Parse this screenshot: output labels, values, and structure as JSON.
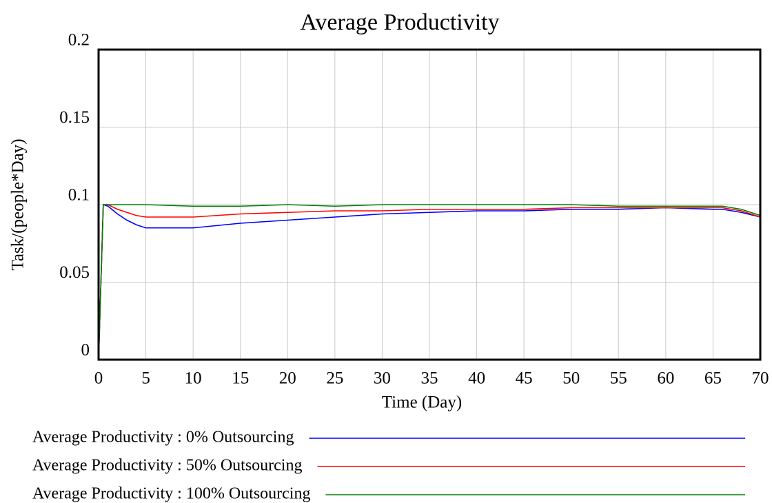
{
  "chart_data": {
    "type": "line",
    "title": "Average Productivity",
    "x_label": "Time (Day)",
    "y_label": "Task/(people*Day)",
    "x": [
      0,
      0.5,
      1,
      2,
      3,
      4,
      5,
      10,
      15,
      20,
      25,
      30,
      35,
      40,
      45,
      50,
      55,
      60,
      65,
      66,
      68,
      70
    ],
    "series": [
      {
        "name": "Average Productivity : 0% Outsourcing",
        "color": "#0000ff",
        "values": [
          0,
          0.1,
          0.099,
          0.094,
          0.09,
          0.087,
          0.085,
          0.085,
          0.088,
          0.09,
          0.092,
          0.094,
          0.095,
          0.096,
          0.096,
          0.097,
          0.097,
          0.098,
          0.097,
          0.097,
          0.095,
          0.092
        ]
      },
      {
        "name": "Average Productivity : 50% Outsourcing",
        "color": "#ff0000",
        "values": [
          0,
          0.1,
          0.1,
          0.097,
          0.095,
          0.093,
          0.092,
          0.092,
          0.094,
          0.095,
          0.096,
          0.096,
          0.097,
          0.097,
          0.097,
          0.098,
          0.098,
          0.098,
          0.098,
          0.098,
          0.096,
          0.092
        ]
      },
      {
        "name": "Average Productivity : 100% Outsourcing",
        "color": "#008000",
        "values": [
          0,
          0.1,
          0.1,
          0.1,
          0.1,
          0.1,
          0.1,
          0.099,
          0.099,
          0.1,
          0.099,
          0.1,
          0.1,
          0.1,
          0.1,
          0.1,
          0.099,
          0.099,
          0.099,
          0.099,
          0.097,
          0.093
        ]
      }
    ],
    "xlim": [
      0,
      70
    ],
    "xticks": [
      0,
      5,
      10,
      15,
      20,
      25,
      30,
      35,
      40,
      45,
      50,
      55,
      60,
      65,
      70
    ],
    "ylim": [
      0,
      0.2
    ],
    "yticks": [
      0,
      0.05,
      0.1,
      0.15,
      0.2
    ],
    "grid": true
  }
}
